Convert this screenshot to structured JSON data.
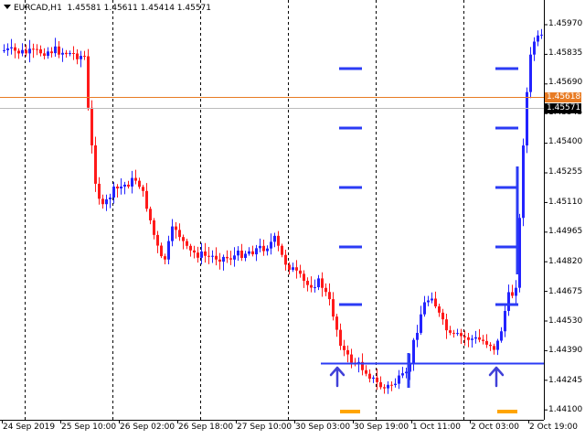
{
  "chart": {
    "symbol_label": "EURCAD,H1",
    "ohlc": "1.45581 1.45611 1.45414 1.45571"
  },
  "price_axis": {
    "labels": [
      "1.45970",
      "1.45835",
      "1.45690",
      "1.45545",
      "1.45400",
      "1.45255",
      "1.45110",
      "1.44965",
      "1.44820",
      "1.44675",
      "1.44530",
      "1.44390",
      "1.44245",
      "1.44100"
    ],
    "ask_tag": "1.45618",
    "bid_tag": "1.45571"
  },
  "time_axis": {
    "labels": [
      "24 Sep 2019",
      "25 Sep 10:00",
      "26 Sep 02:00",
      "26 Sep 18:00",
      "27 Sep 10:00",
      "30 Sep 03:00",
      "30 Sep 19:00",
      "1 Oct 11:00",
      "2 Oct 03:00",
      "2 Oct 19:00"
    ]
  },
  "colors": {
    "bull": "#2323ff",
    "bear": "#ff1a1a",
    "ask_line": "#e87b23",
    "bid_line": "#bbbbbb",
    "level_dash": "#2b3bf5",
    "marker_orange": "#ffa500",
    "arrow": "#4040d8",
    "grid": "#000000"
  },
  "icons": {
    "dropdown": "triangle-down-icon",
    "signal": "up-arrow-icon"
  }
}
